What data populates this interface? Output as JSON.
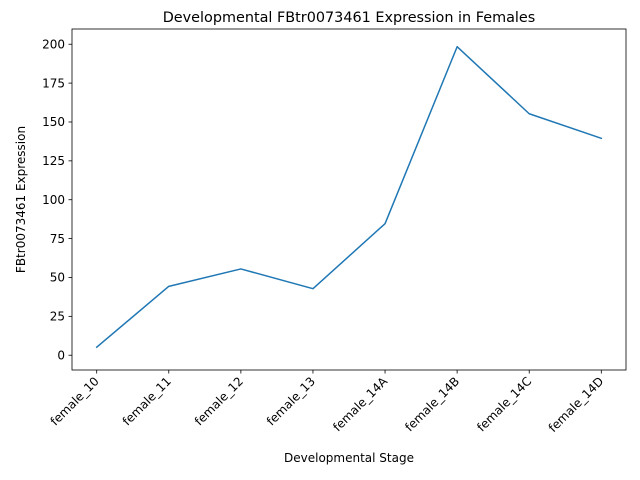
{
  "chart_data": {
    "type": "line",
    "title": "Developmental FBtr0073461 Expression in Females",
    "xlabel": "Developmental Stage",
    "ylabel": "FBtr0073461 Expression",
    "categories": [
      "female_10",
      "female_11",
      "female_12",
      "female_13",
      "female_14A",
      "female_14B",
      "female_14C",
      "female_14D"
    ],
    "series": [
      {
        "name": "FBtr0073461",
        "values": [
          5.2,
          44.3,
          55.5,
          42.8,
          84.6,
          198.4,
          155.3,
          139.5
        ]
      }
    ],
    "ylim": [
      -9.5,
      209.8
    ],
    "yticks": [
      0,
      25,
      50,
      75,
      100,
      125,
      150,
      175,
      200
    ],
    "ytick_labels": [
      "0",
      "25",
      "50",
      "75",
      "100",
      "125",
      "150",
      "175",
      "200"
    ],
    "grid": false,
    "line_color": "#1f77b4"
  }
}
